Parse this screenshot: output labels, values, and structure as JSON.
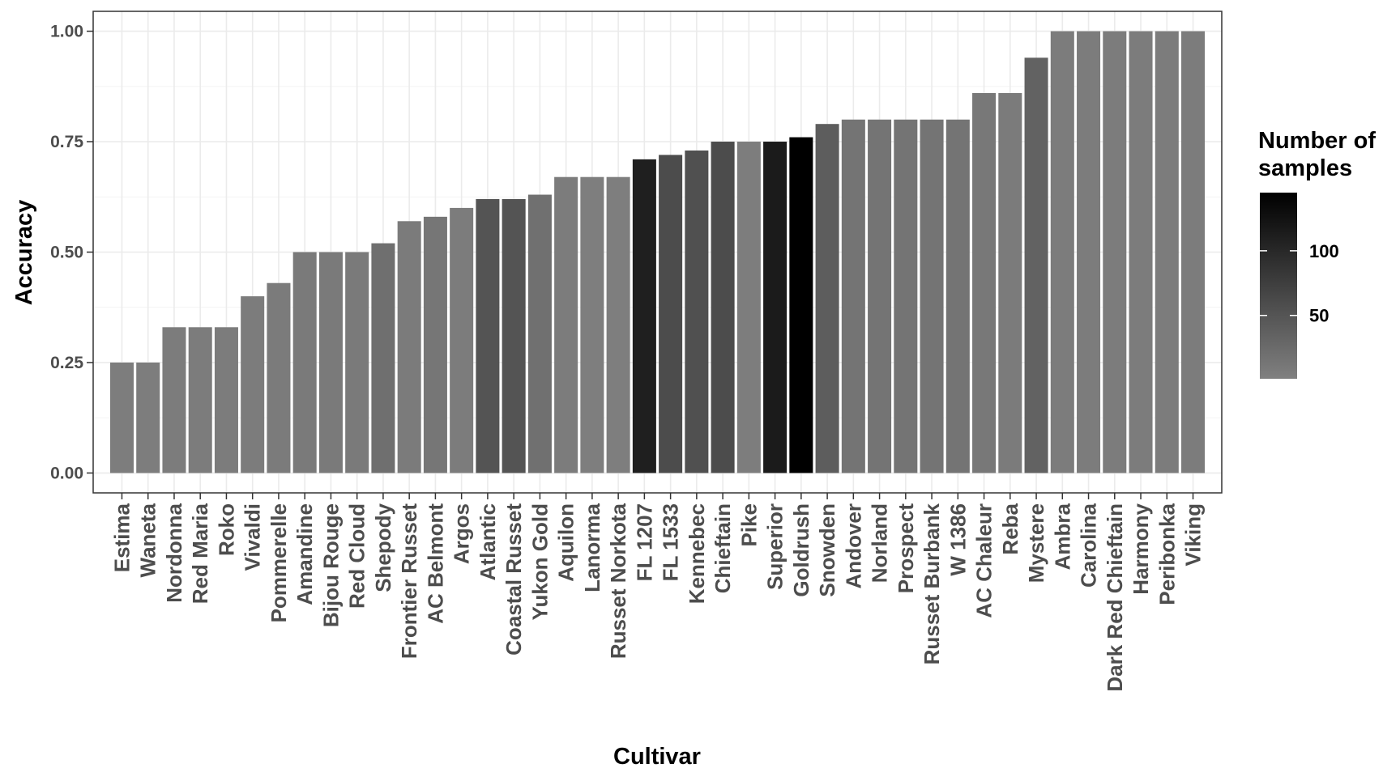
{
  "chart_data": {
    "type": "bar",
    "xlabel": "Cultivar",
    "ylabel": "Accuracy",
    "ylim": [
      -0.045,
      1.045
    ],
    "yticks": [
      "0.00",
      "0.25",
      "0.50",
      "0.75",
      "1.00"
    ],
    "grid": true,
    "legend": {
      "title_lines": [
        "Number of",
        "samples"
      ],
      "placement": "right",
      "labels": [
        "100",
        "50"
      ],
      "ticks": [
        100,
        50
      ],
      "range": [
        1,
        145
      ],
      "color_low": "#808080",
      "color_high": "#000000"
    },
    "categories": [
      "Estima",
      "Waneta",
      "Nordonna",
      "Red Maria",
      "Roko",
      "Vivaldi",
      "Pommerelle",
      "Amandine",
      "Bijou Rouge",
      "Red Cloud",
      "Shepody",
      "Frontier Russet",
      "AC Belmont",
      "Argos",
      "Atlantic",
      "Coastal Russet",
      "Yukon Gold",
      "Aquilon",
      "Lanorma",
      "Russet Norkota",
      "FL 1207",
      "FL 1533",
      "Kennebec",
      "Chieftain",
      "Pike",
      "Superior",
      "Goldrush",
      "Snowden",
      "Andover",
      "Norland",
      "Prospect",
      "Russet Burbank",
      "W 1386",
      "AC Chaleur",
      "Reba",
      "Mystere",
      "Ambra",
      "Carolina",
      "Dark Red Chieftain",
      "Harmony",
      "Peribonka",
      "Viking"
    ],
    "values": [
      0.25,
      0.25,
      0.33,
      0.33,
      0.33,
      0.4,
      0.43,
      0.5,
      0.5,
      0.5,
      0.52,
      0.57,
      0.58,
      0.6,
      0.62,
      0.62,
      0.63,
      0.67,
      0.67,
      0.67,
      0.71,
      0.72,
      0.73,
      0.75,
      0.75,
      0.75,
      0.76,
      0.79,
      0.8,
      0.8,
      0.8,
      0.8,
      0.8,
      0.86,
      0.86,
      0.94,
      1.0,
      1.0,
      1.0,
      1.0,
      1.0,
      1.0
    ],
    "samples": [
      4,
      4,
      6,
      6,
      6,
      5,
      7,
      8,
      8,
      8,
      20,
      7,
      12,
      5,
      50,
      50,
      19,
      6,
      3,
      3,
      110,
      60,
      55,
      60,
      4,
      115,
      145,
      40,
      15,
      15,
      15,
      15,
      15,
      10,
      7,
      35,
      5,
      5,
      5,
      5,
      5,
      5
    ]
  }
}
